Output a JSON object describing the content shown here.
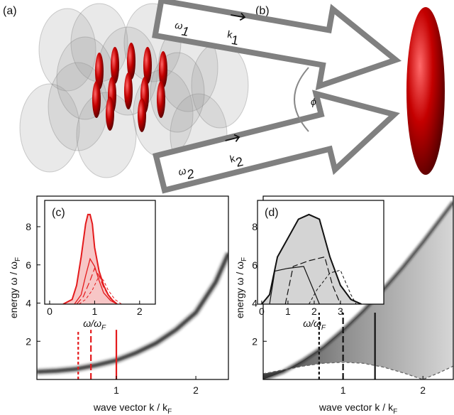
{
  "panel_labels": {
    "a": "(a)",
    "b": "(b)"
  },
  "diagram_b": {
    "beam1": {
      "omega": "ω",
      "omega_sub": "1",
      "k": "k",
      "k_sub": "1"
    },
    "beam2": {
      "omega": "ω",
      "omega_sub": "2",
      "k": "k",
      "k_sub": "2"
    },
    "angle": "ϕ"
  },
  "chart_data": [
    {
      "type": "line",
      "panel_label": "(c)",
      "xlim": [
        0,
        2.41
      ],
      "ylim": [
        0,
        9.6
      ],
      "xticks": [
        1,
        2
      ],
      "yticks": [
        2,
        4,
        6,
        8
      ],
      "x_label": {
        "main": "wave vector k / k",
        "sub": "F"
      },
      "y_label": {
        "main": "energy ω / ω",
        "sub": "F"
      },
      "series": [
        {
          "color": "#111111",
          "blur": true,
          "width": 3,
          "x": [
            0,
            0.25,
            0.5,
            0.75,
            1,
            1.25,
            1.5,
            1.75,
            2,
            2.25,
            2.41
          ],
          "values": [
            0.4,
            0.45,
            0.55,
            0.75,
            1.0,
            1.4,
            1.9,
            2.6,
            3.5,
            5.1,
            6.6
          ]
        }
      ],
      "vlines": {
        "x": [
          0.52,
          0.68,
          1.0
        ],
        "top": 2.6,
        "dash": [
          "short",
          "long",
          "solid"
        ],
        "color": "#e41a1c"
      }
    },
    {
      "type": "line",
      "xlim": [
        -0.11,
        2.35
      ],
      "ylim": [
        0,
        1.1
      ],
      "xticks": [
        0,
        1,
        2
      ],
      "x_label": {
        "main": "ω/ω",
        "sub": "F"
      },
      "series": [
        {
          "color": "#e41a1c",
          "fill": "#f7c6c6",
          "width": 2,
          "x": [
            0.3,
            0.5,
            0.6,
            0.7,
            0.8,
            0.85,
            0.9,
            0.95,
            1.0,
            1.1,
            1.2,
            1.3,
            1.4,
            1.5
          ],
          "values": [
            0,
            0.05,
            0.2,
            0.5,
            0.85,
            0.95,
            0.95,
            0.85,
            0.6,
            0.35,
            0.2,
            0.1,
            0.04,
            0
          ]
        },
        {
          "color": "#e41a1c",
          "width": 1.3,
          "dash": "solid",
          "x": [
            0.55,
            0.7,
            0.8,
            0.9,
            1.0,
            1.1,
            1.2,
            1.35,
            1.5
          ],
          "values": [
            0,
            0.1,
            0.3,
            0.48,
            0.4,
            0.25,
            0.12,
            0.04,
            0
          ]
        },
        {
          "color": "#e41a1c",
          "width": 1.2,
          "dash": "long",
          "x": [
            0.6,
            0.75,
            0.9,
            1.0,
            1.1,
            1.2,
            1.35,
            1.5
          ],
          "values": [
            0,
            0.08,
            0.25,
            0.38,
            0.3,
            0.18,
            0.06,
            0
          ]
        },
        {
          "color": "#e41a1c",
          "width": 1,
          "dash": "short",
          "x": [
            0.65,
            0.8,
            0.95,
            1.1,
            1.2,
            1.3,
            1.45,
            1.6
          ],
          "values": [
            0,
            0.05,
            0.15,
            0.3,
            0.25,
            0.15,
            0.05,
            0
          ]
        }
      ]
    },
    {
      "type": "line",
      "panel_label": "(d)",
      "xlim": [
        0,
        2.38
      ],
      "ylim": [
        0,
        9.6
      ],
      "xticks": [
        1,
        2
      ],
      "yticks": [
        2,
        4,
        6,
        8
      ],
      "x_label": {
        "main": "wave vector k / k",
        "sub": "F"
      },
      "y_label": {
        "main": "energy ω / ω",
        "sub": "F"
      },
      "series": [
        {
          "color": "#222222",
          "blur": true,
          "width": 2,
          "lower_dash": "short",
          "x": [
            0,
            0.25,
            0.5,
            0.75,
            1,
            1.25,
            1.5,
            1.75,
            2,
            2.2,
            2.38
          ],
          "values": [
            0,
            0.4,
            1.0,
            1.7,
            2.6,
            3.6,
            4.7,
            5.9,
            7.2,
            8.3,
            9.3
          ],
          "lower": [
            0.3,
            0.5,
            0.7,
            0.85,
            0.9,
            0.85,
            0.65,
            0.35,
            0,
            0.35,
            0.7
          ]
        }
      ],
      "vlines": {
        "x": [
          0.7,
          1.0,
          1.4
        ],
        "top": 3.5,
        "dash": [
          "short",
          "long",
          "solid"
        ],
        "color": "#111111"
      }
    },
    {
      "type": "line",
      "xlim": [
        -0.16,
        4.65
      ],
      "ylim": [
        0,
        1.1
      ],
      "xticks": [
        0,
        1,
        2,
        3
      ],
      "x_label": {
        "main": "ω/ω",
        "sub": "F"
      },
      "series": [
        {
          "color": "#111111",
          "fill": "#d4d4d4",
          "width": 2,
          "x": [
            0,
            0.3,
            0.6,
            1,
            1.4,
            1.8,
            2.2,
            2.6,
            3,
            3.4,
            3.8
          ],
          "values": [
            0,
            0.1,
            0.5,
            0.7,
            0.9,
            0.95,
            0.9,
            0.5,
            0.2,
            0.05,
            0
          ]
        },
        {
          "color": "#111111",
          "width": 1.2,
          "dash": "solid",
          "x": [
            0.3,
            0.5,
            1.0,
            1.6,
            1.9,
            2.2
          ],
          "values": [
            0,
            0.35,
            0.38,
            0.4,
            0.2,
            0
          ]
        },
        {
          "color": "#111111",
          "width": 1.2,
          "dash": "long",
          "x": [
            0.9,
            1.2,
            1.8,
            2.4,
            2.7,
            3.0
          ],
          "values": [
            0,
            0.4,
            0.46,
            0.5,
            0.2,
            0
          ]
        },
        {
          "color": "#111111",
          "width": 1,
          "dash": "short",
          "x": [
            1.8,
            2.1,
            2.6,
            3.0,
            3.4,
            3.6
          ],
          "values": [
            0,
            0.15,
            0.33,
            0.36,
            0.1,
            0
          ]
        }
      ]
    }
  ]
}
